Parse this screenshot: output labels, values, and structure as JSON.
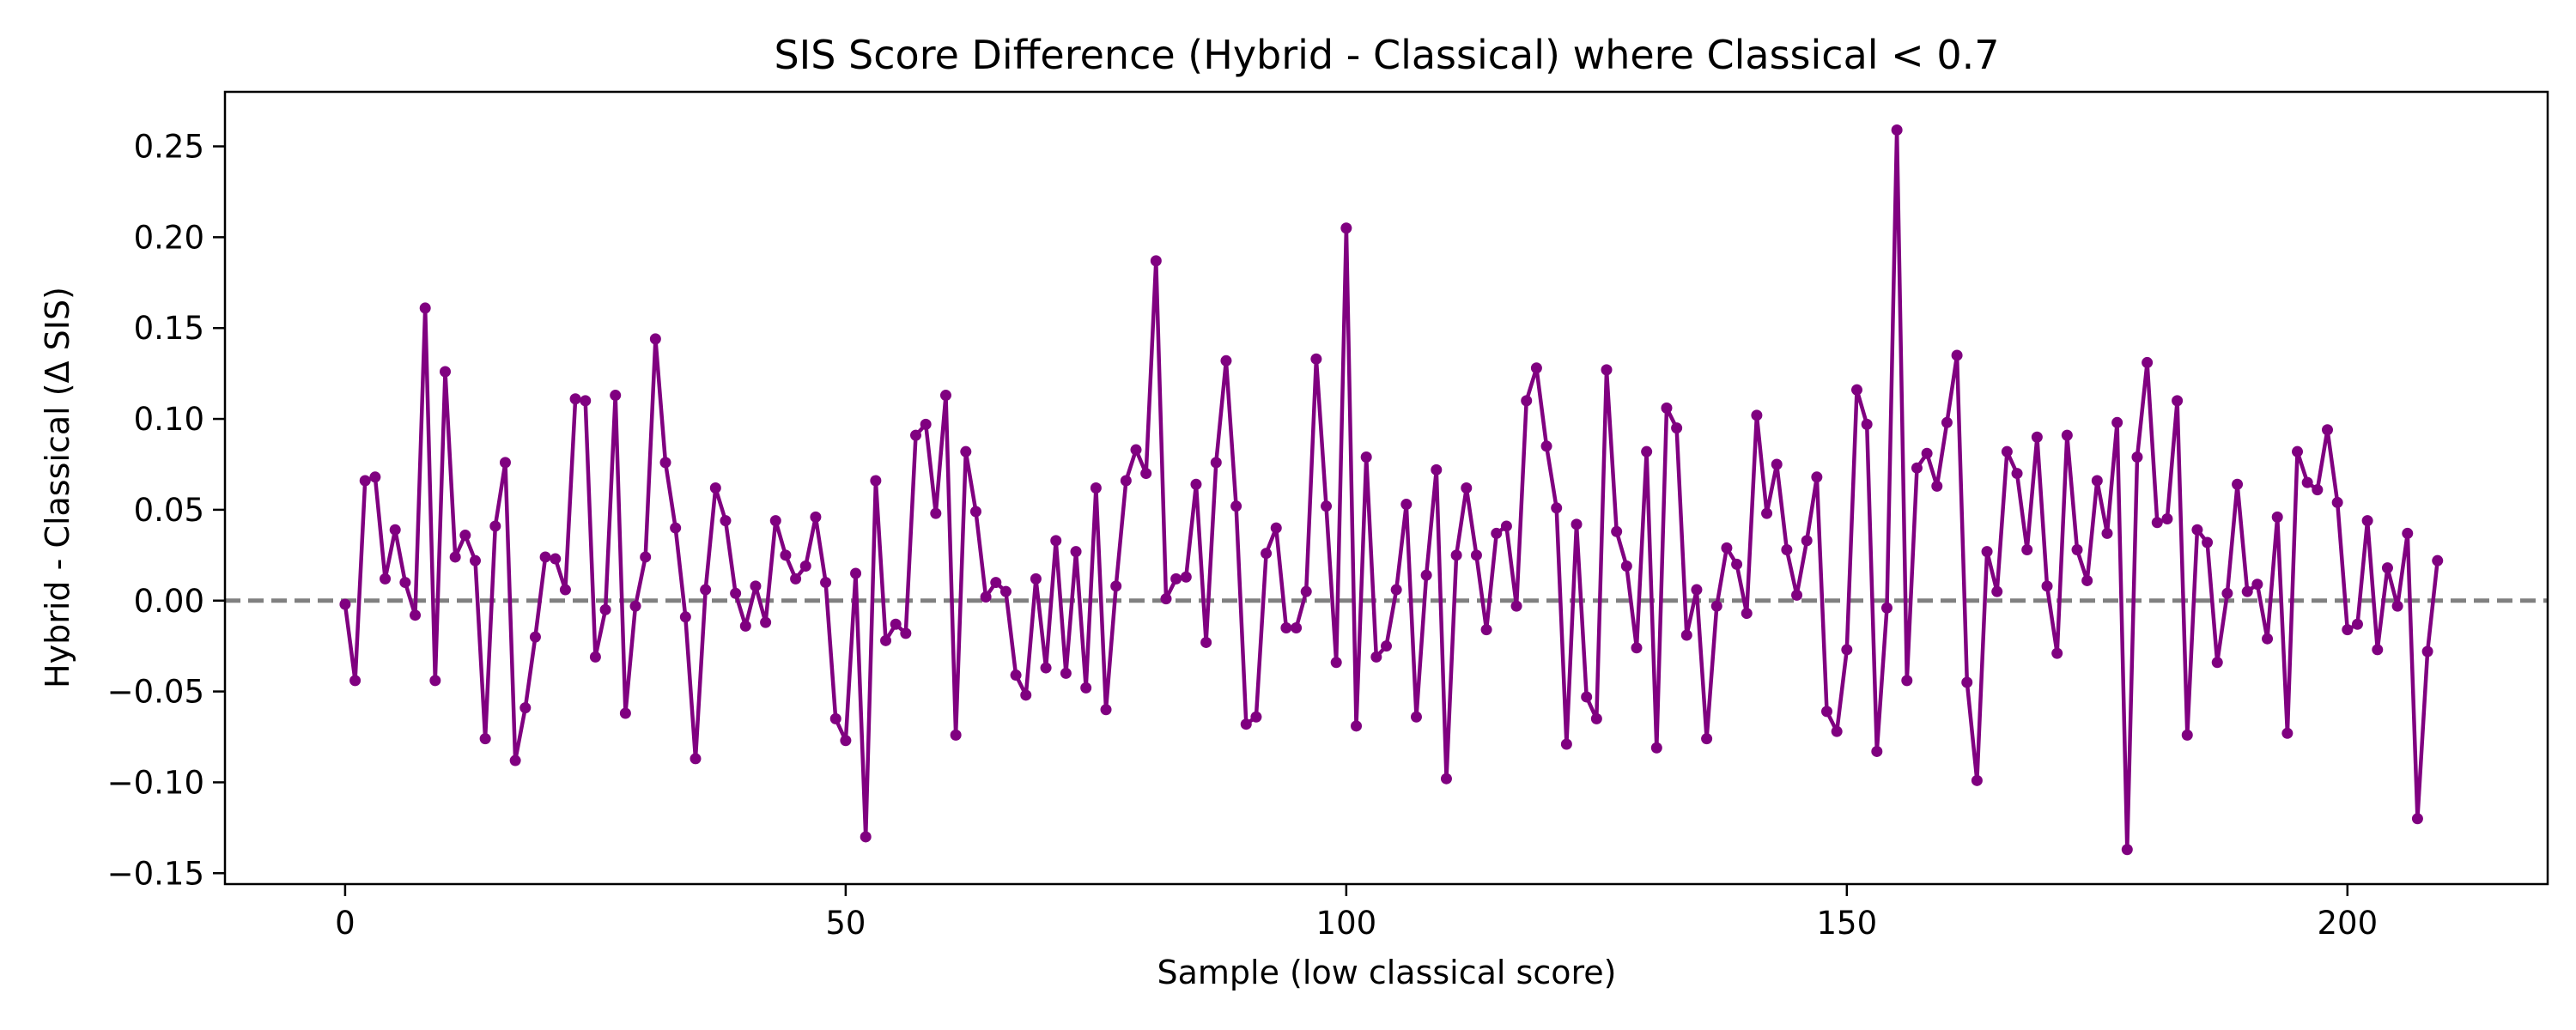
{
  "chart_data": {
    "type": "line",
    "title": "SIS Score Difference (Hybrid - Classical) where Classical < 0.7",
    "xlabel": "Sample (low classical score)",
    "ylabel": "Hybrid - Classical (Δ SIS)",
    "xlim": [
      -12,
      220
    ],
    "ylim": [
      -0.156,
      0.28
    ],
    "x_ticks": [
      0,
      50,
      100,
      150,
      200
    ],
    "x_tick_labels": [
      "0",
      "50",
      "100",
      "150",
      "200"
    ],
    "y_ticks": [
      -0.15,
      -0.1,
      -0.05,
      0.0,
      0.05,
      0.1,
      0.15,
      0.2,
      0.25
    ],
    "y_tick_labels": [
      "−0.15",
      "−0.10",
      "−0.05",
      "0.00",
      "0.05",
      "0.10",
      "0.15",
      "0.20",
      "0.25"
    ],
    "grid": false,
    "reference_line": {
      "y": 0,
      "style": "dashed",
      "color": "#808080"
    },
    "series": [
      {
        "color": "#800080",
        "marker": "circle",
        "values": [
          -0.002,
          -0.044,
          0.066,
          0.068,
          0.012,
          0.039,
          0.01,
          -0.008,
          0.161,
          -0.044,
          0.126,
          0.024,
          0.036,
          0.022,
          -0.076,
          0.041,
          0.076,
          -0.088,
          -0.059,
          -0.02,
          0.024,
          0.023,
          0.006,
          0.111,
          0.11,
          -0.031,
          -0.005,
          0.113,
          -0.062,
          -0.003,
          0.024,
          0.144,
          0.076,
          0.04,
          -0.009,
          -0.087,
          0.006,
          0.062,
          0.044,
          0.004,
          -0.014,
          0.008,
          -0.012,
          0.044,
          0.025,
          0.012,
          0.019,
          0.046,
          0.01,
          -0.065,
          -0.077,
          0.015,
          -0.13,
          0.066,
          -0.022,
          -0.013,
          -0.018,
          0.091,
          0.097,
          0.048,
          0.113,
          -0.074,
          0.082,
          0.049,
          0.002,
          0.01,
          0.005,
          -0.041,
          -0.052,
          0.012,
          -0.037,
          0.033,
          -0.04,
          0.027,
          -0.048,
          0.062,
          -0.06,
          0.008,
          0.066,
          0.083,
          0.07,
          0.187,
          0.001,
          0.012,
          0.013,
          0.064,
          -0.023,
          0.076,
          0.132,
          0.052,
          -0.068,
          -0.064,
          0.026,
          0.04,
          -0.015,
          -0.015,
          0.005,
          0.133,
          0.052,
          -0.034,
          0.205,
          -0.069,
          0.079,
          -0.031,
          -0.025,
          0.006,
          0.053,
          -0.064,
          0.014,
          0.072,
          -0.098,
          0.025,
          0.062,
          0.025,
          -0.016,
          0.037,
          0.041,
          -0.003,
          0.11,
          0.128,
          0.085,
          0.051,
          -0.079,
          0.042,
          -0.053,
          -0.065,
          0.127,
          0.038,
          0.019,
          -0.026,
          0.082,
          -0.081,
          0.106,
          0.095,
          -0.019,
          0.006,
          -0.076,
          -0.003,
          0.029,
          0.02,
          -0.007,
          0.102,
          0.048,
          0.075,
          0.028,
          0.003,
          0.033,
          0.068,
          -0.061,
          -0.072,
          -0.027,
          0.116,
          0.097,
          -0.083,
          -0.004,
          0.259,
          -0.044,
          0.073,
          0.081,
          0.063,
          0.098,
          0.135,
          -0.045,
          -0.099,
          0.027,
          0.005,
          0.082,
          0.07,
          0.028,
          0.09,
          0.008,
          -0.029,
          0.091,
          0.028,
          0.011,
          0.066,
          0.037,
          0.098,
          -0.137,
          0.079,
          0.131,
          0.043,
          0.045,
          0.11,
          -0.074,
          0.039,
          0.032,
          -0.034,
          0.004,
          0.064,
          0.005,
          0.009,
          -0.021,
          0.046,
          -0.073,
          0.082,
          0.065,
          0.061,
          0.094,
          0.054,
          -0.016,
          -0.013,
          0.044,
          -0.027,
          0.018,
          -0.003,
          0.037,
          -0.12,
          -0.028,
          0.022
        ]
      }
    ]
  }
}
